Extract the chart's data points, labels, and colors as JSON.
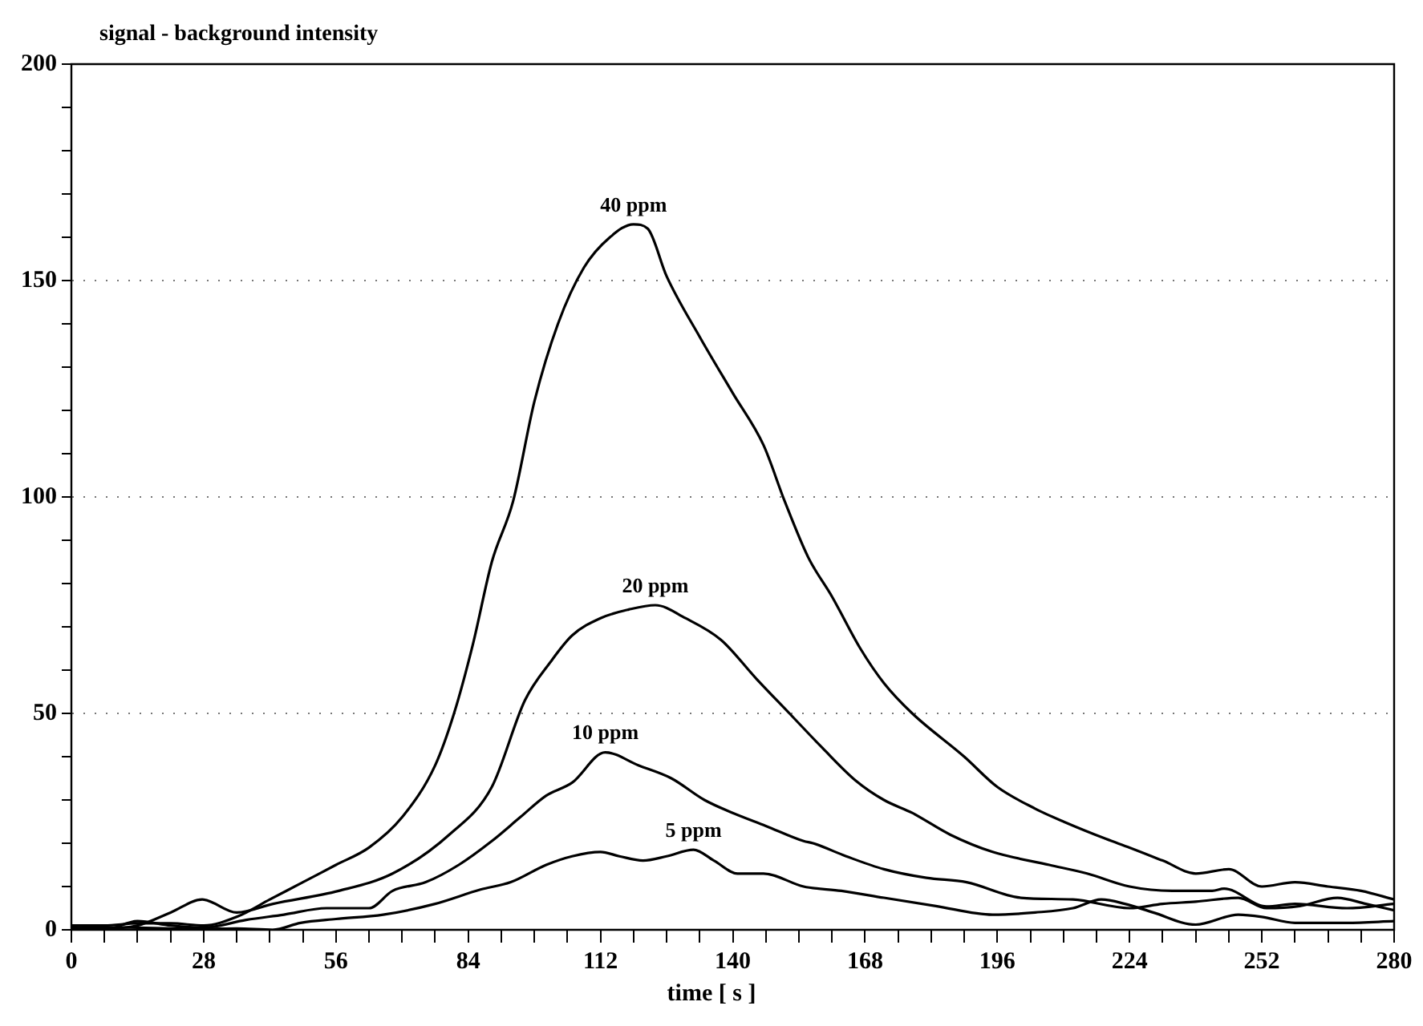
{
  "chart_data": {
    "type": "line",
    "xlabel": "time [ s ]",
    "ylabel": "signal - background intensity",
    "xlim": [
      0,
      280
    ],
    "ylim": [
      0,
      200
    ],
    "xticks": [
      0,
      {
        "value": 7,
        "label": null
      },
      {
        "value": 14,
        "label": null
      },
      {
        "value": 21,
        "label": null
      },
      28,
      {
        "value": 35,
        "label": null
      },
      {
        "value": 42,
        "label": null
      },
      {
        "value": 49,
        "label": null
      },
      56,
      {
        "value": 63,
        "label": null
      },
      {
        "value": 70,
        "label": null
      },
      {
        "value": 77,
        "label": null
      },
      84,
      {
        "value": 91,
        "label": null
      },
      {
        "value": 98,
        "label": null
      },
      {
        "value": 105,
        "label": null
      },
      112,
      {
        "value": 119,
        "label": null
      },
      {
        "value": 126,
        "label": null
      },
      {
        "value": 133,
        "label": null
      },
      140,
      {
        "value": 147,
        "label": null
      },
      {
        "value": 154,
        "label": null
      },
      {
        "value": 161,
        "label": null
      },
      168,
      {
        "value": 175,
        "label": null
      },
      {
        "value": 182,
        "label": null
      },
      {
        "value": 189,
        "label": null
      },
      196,
      {
        "value": 203,
        "label": null
      },
      {
        "value": 210,
        "label": null
      },
      {
        "value": 217,
        "label": null
      },
      224,
      {
        "value": 231,
        "label": null
      },
      {
        "value": 238,
        "label": null
      },
      {
        "value": 245,
        "label": null
      },
      252,
      {
        "value": 259,
        "label": null
      },
      {
        "value": 266,
        "label": null
      },
      {
        "value": 273,
        "label": null
      },
      280
    ],
    "yticks": [
      0,
      {
        "value": 10,
        "label": null
      },
      {
        "value": 20,
        "label": null
      },
      {
        "value": 30,
        "label": null
      },
      {
        "value": 40,
        "label": null
      },
      50,
      {
        "value": 60,
        "label": null
      },
      {
        "value": 70,
        "label": null
      },
      {
        "value": 80,
        "label": null
      },
      {
        "value": 90,
        "label": null
      },
      100,
      {
        "value": 110,
        "label": null
      },
      {
        "value": 120,
        "label": null
      },
      {
        "value": 130,
        "label": null
      },
      {
        "value": 140,
        "label": null
      },
      150,
      {
        "value": 160,
        "label": null
      },
      {
        "value": 170,
        "label": null
      },
      {
        "value": 180,
        "label": null
      },
      {
        "value": 190,
        "label": null
      },
      200
    ],
    "grid": "y",
    "marker": "none",
    "line_style": "solid",
    "series": [
      {
        "name": "40 ppm",
        "color": "#000000",
        "x": [
          0,
          7,
          14,
          21,
          28,
          35,
          42,
          49,
          56,
          63,
          70,
          77,
          81,
          85,
          89,
          93.5,
          98,
          103,
          108.5,
          114,
          119,
          122,
          126,
          133,
          140,
          146.5,
          151,
          156,
          161,
          167,
          172,
          178,
          189,
          196,
          204,
          210,
          219,
          224,
          231,
          238,
          245,
          252,
          259,
          266,
          273,
          280
        ],
        "values": [
          1,
          1,
          1.5,
          1.5,
          1,
          3,
          7,
          11,
          15,
          19,
          26,
          38,
          50,
          66,
          85,
          99,
          122,
          140,
          153,
          160,
          163,
          162,
          151,
          137,
          124,
          112,
          99,
          86,
          77,
          65,
          57,
          50,
          40,
          33,
          28,
          25,
          21,
          19,
          16,
          13,
          14,
          10,
          11,
          10,
          9,
          7
        ]
      },
      {
        "name": "20 ppm",
        "color": "#000000",
        "x": [
          0,
          7,
          14,
          21,
          27.7,
          35,
          42.7,
          56.6,
          68,
          80,
          89,
          96,
          101.5,
          106,
          112,
          118,
          123.6,
          130,
          137.5,
          145,
          152,
          159,
          166,
          172,
          178,
          186,
          195,
          207,
          215,
          224,
          233,
          241.5,
          244,
          253,
          259,
          270,
          280
        ],
        "values": [
          0.5,
          0.3,
          1,
          4,
          7,
          4,
          6,
          9,
          13,
          22,
          33,
          53,
          62,
          68,
          72,
          74,
          75,
          72,
          67,
          58,
          50,
          42,
          34.5,
          30,
          27,
          22,
          18,
          15,
          13,
          10,
          9,
          9,
          9.5,
          5.4,
          6,
          5,
          6
        ]
      },
      {
        "name": "10 ppm",
        "color": "#000000",
        "x": [
          0,
          7,
          14,
          21,
          28,
          37,
          45,
          54,
          63,
          68,
          75,
          82,
          89,
          95,
          100.5,
          106,
          113,
          120,
          127,
          134,
          140,
          147,
          155,
          157,
          164,
          172,
          181,
          189.5,
          201,
          212,
          224,
          231,
          238,
          247,
          253,
          260,
          268,
          274,
          280
        ],
        "values": [
          0,
          0,
          2,
          1,
          0.5,
          2.3,
          3.5,
          5,
          5,
          9,
          11,
          15,
          20.5,
          26,
          31,
          34,
          41,
          38,
          35,
          30,
          27,
          24,
          20.5,
          20,
          17,
          14,
          12,
          11,
          7.4,
          7,
          5,
          6,
          6.5,
          7.4,
          5,
          5.5,
          7.4,
          6,
          4.5
        ]
      },
      {
        "name": "5 ppm",
        "color": "#000000",
        "x": [
          0,
          7,
          14,
          21,
          28,
          35,
          42.6,
          48.5,
          56,
          66,
          77,
          86.6,
          93,
          100.5,
          106,
          112,
          116,
          121,
          126,
          131.7,
          136,
          141,
          146.5,
          155,
          163,
          172,
          183,
          195,
          204,
          212,
          218,
          223,
          229,
          238,
          247,
          252,
          259,
          270,
          280
        ],
        "values": [
          0.3,
          0.6,
          0.5,
          0.3,
          0.2,
          0.3,
          0,
          1.6,
          2.5,
          3.5,
          6,
          9.3,
          11,
          15,
          17,
          18,
          17,
          16,
          17,
          18.5,
          16,
          13,
          13,
          10,
          9,
          7.4,
          5.5,
          3.5,
          4,
          5,
          7,
          6,
          4,
          1.2,
          3.5,
          3,
          1.6,
          1.6,
          2
        ]
      }
    ]
  }
}
